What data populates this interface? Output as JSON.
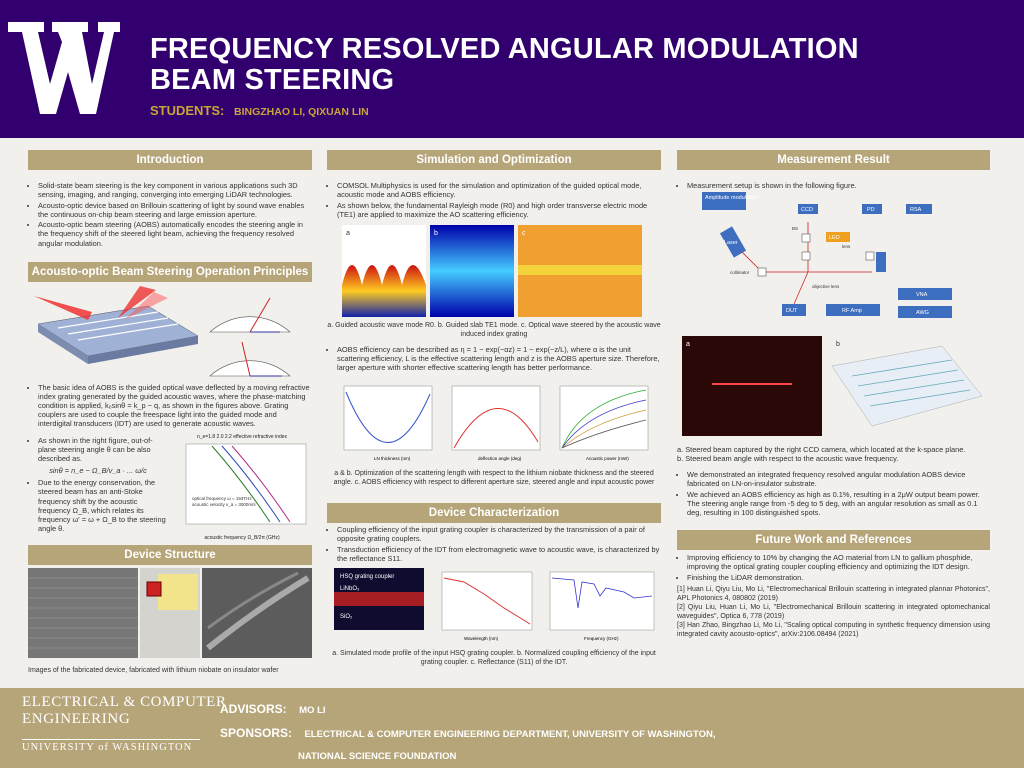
{
  "header": {
    "title_line1": "FREQUENCY RESOLVED ANGULAR MODULATION",
    "title_line2": "BEAM STEERING",
    "students_label": "STUDENTS:",
    "students": "BINGZHAO LI, QIXUAN LIN"
  },
  "intro": {
    "heading": "Introduction",
    "bullets": [
      "Solid-state beam steering is the key component in various applications such 3D sensing, imaging, and ranging, converging into emerging LiDAR technologies.",
      "Acousto-optic device based on Brillouin scattering of light by sound wave enables the continuous on-chip beam steering and large emission aperture.",
      "Acousto-optic beam steering (AOBS) automatically encodes the steering angle in the frequency shift of the steered light beam, achieving the frequency resolved angular modulation."
    ]
  },
  "principles": {
    "heading": "Acousto-optic Beam Steering Operation Principles",
    "p1": "The basic idea of AOBS is the guided optical wave deflected by a moving refractive index grating generated by the guided acoustic waves, where the phase-matching condition is applied, k₀sinθ = k_p − q, as shown in the figures above. Grating couplers are used to couple the freespace light into the guided mode and interdigital transducers (IDT) are used to generate acoustic waves.",
    "p2": "As shown in the right figure, out-of-plane steering angle θ can be also described as.",
    "eq": "sinθ = n_e − Ω_B/v_a · ... ω/c",
    "p3": "Due to the energy conservation, the steered beam has an anti-Stoke frequency shift by the acoustic frequency Ω_B, which relates its frequency ω′ = ω + Ω_B to the steering angle θ.",
    "plot_label": "n_e=1.8  2.0  2.2  effective refractive index",
    "plot_note1": "optical frequency ω = 193THz",
    "plot_note2": "acoustic velocity v_a = 3000m/s",
    "plot_xlabel": "acoustic frequency Ω_B/2π (GHz)",
    "plot_ylabel": "θ (deg)"
  },
  "device": {
    "heading": "Device Structure",
    "caption": "Images of the fabricated device, fabricated with lithium niobate on insulator wafer"
  },
  "sim": {
    "heading": "Simulation and Optimization",
    "bullets": [
      "COMSOL Multiphysics is used for the simulation and optimization of the guided optical mode, acoustic mode and AOBS efficiency.",
      "As shown below, the fundamental Rayleigh mode (R0) and high order transverse electric mode (TE1) are applied to maximize the AO scattering efficiency."
    ],
    "panels": [
      "a",
      "b",
      "c"
    ],
    "caption1": "a. Guided acoustic wave mode R0. b. Guided slab TE1 mode. c. Optical wave steered by the acoustic wave induced index grating",
    "bullet2": "AOBS efficiency can be described as η = 1 − exp(−αz) = 1 − exp(−z/L), where α is the unit scattering efficiency, L is the effective scattering length and z is the AOBS aperture size. Therefore, larger aperture with shorter effective scattering length has better performance.",
    "plot_a_xlabel": "LN thickness (nm)",
    "plot_a_ylabel": "Scattering Length (mm)",
    "plot_b_xlabel": "deflection angle (deg)",
    "plot_b_ylabel": "Scattering Length (mm)",
    "plot_c_xlabel": "Acoustic power (mW)",
    "plot_c_ylabel": "AOBS efficiency (%)",
    "caption2": "a & b. Optimization of the scattering length with respect to the lithium niobate thickness and the steered angle. c. AOBS efficiency with respect to different aperture size, steered angle and input acoustic power"
  },
  "devchar": {
    "heading": "Device Characterization",
    "bullets": [
      "Coupling efficiency of the input grating coupler is characterized by the transmission of a pair of opposite grating couplers.",
      "Transduction efficiency of the IDT from electromagnetic wave to acoustic wave, is characterized by the reflectance S11."
    ],
    "label_hsq": "HSQ grating coupler",
    "label_linbo3": "LiNbO₃",
    "label_sio2": "SiO₂",
    "plot_b_xlabel": "Wavelength (nm)",
    "plot_b_ylabel": "Normalized coupling efficiency",
    "plot_c_xlabel": "Frequency (GHz)",
    "plot_c_ylabel": "|S11| (A.U.)",
    "caption": "a. Simulated mode profile of the input HSQ grating coupler. b. Normalized coupling efficiency of the input grating coupler. c. Reflectance (S11) of the IDT."
  },
  "measure": {
    "heading": "Measurement Result",
    "bullet1": "Measurement setup is shown in the following figure.",
    "setup": {
      "amp_mod": "Amplitude modulation",
      "ccd": "CCD",
      "pd": "PD",
      "rsa": "RSA",
      "led": "LED",
      "laser": "Laser",
      "collimator": "collimator",
      "lens": "lens",
      "objective_lens": "objective lens",
      "bs": "BS",
      "dut": "DUT",
      "rf_amp": "RF Amp",
      "vna": "VNA",
      "awg": "AWG"
    },
    "caption_lines": [
      "a. Steered beam captured by the right CCD camera, which located at the k-space plane.",
      "b. Steered beam angle with respect to the acoustic wave frequency."
    ],
    "bullets": [
      "We demonstrated an integrated frequency resolved angular modulation AOBS device fabricated on LN-on-insulator substrate.",
      "We achieved an AOBS efficiency as high as 0.1%, resulting in a 2μW output beam power. The steering angle range from -5 deg to 5 deg, with an angular resolution as small as 0.1 deg, resulting in 100 distinguished spots."
    ]
  },
  "future": {
    "heading": "Future Work and References",
    "bullets": [
      "Improving efficiency to 10% by changing the AO material from LN to gallium phosphide, improving the optical grating coupler coupling efficiency and optimizing the IDT design.",
      "Finishing the LiDAR demonstration."
    ],
    "refs": [
      "[1] Huan Li, Qiyu Liu, Mo Li, \"Electromechanical Brillouin scattering in integrated plannar Photonics\", APL Photonics 4, 080802 (2019)",
      "[2] Qiyu Liu, Huan Li, Mo Li, \"Electromechanical Brillouin scattering in integrated optomechanical waveguides\", Optica 6, 778 (2019)",
      "[3] Han Zhao, Bingzhao Li, Mo Li, \"Scaling optical computing in synthetic frequency dimension using integrated cavity acousto-optics\", arXiv:2106.08494 (2021)"
    ]
  },
  "footer": {
    "ece_line1": "ELECTRICAL & COMPUTER",
    "ece_line2": "ENGINEERING",
    "uw": "UNIVERSITY of WASHINGTON",
    "advisors_label": "ADVISORS:",
    "advisors": "MO LI",
    "sponsors_label": "SPONSORS:",
    "sponsors1": "ELECTRICAL & COMPUTER ENGINEERING DEPARTMENT, UNIVERSITY OF WASHINGTON,",
    "sponsors2": "NATIONAL SCIENCE FOUNDATION"
  },
  "colors": {
    "purple": "#32006e",
    "gold": "#b7a57a",
    "accent_gold": "#c9a43a"
  }
}
